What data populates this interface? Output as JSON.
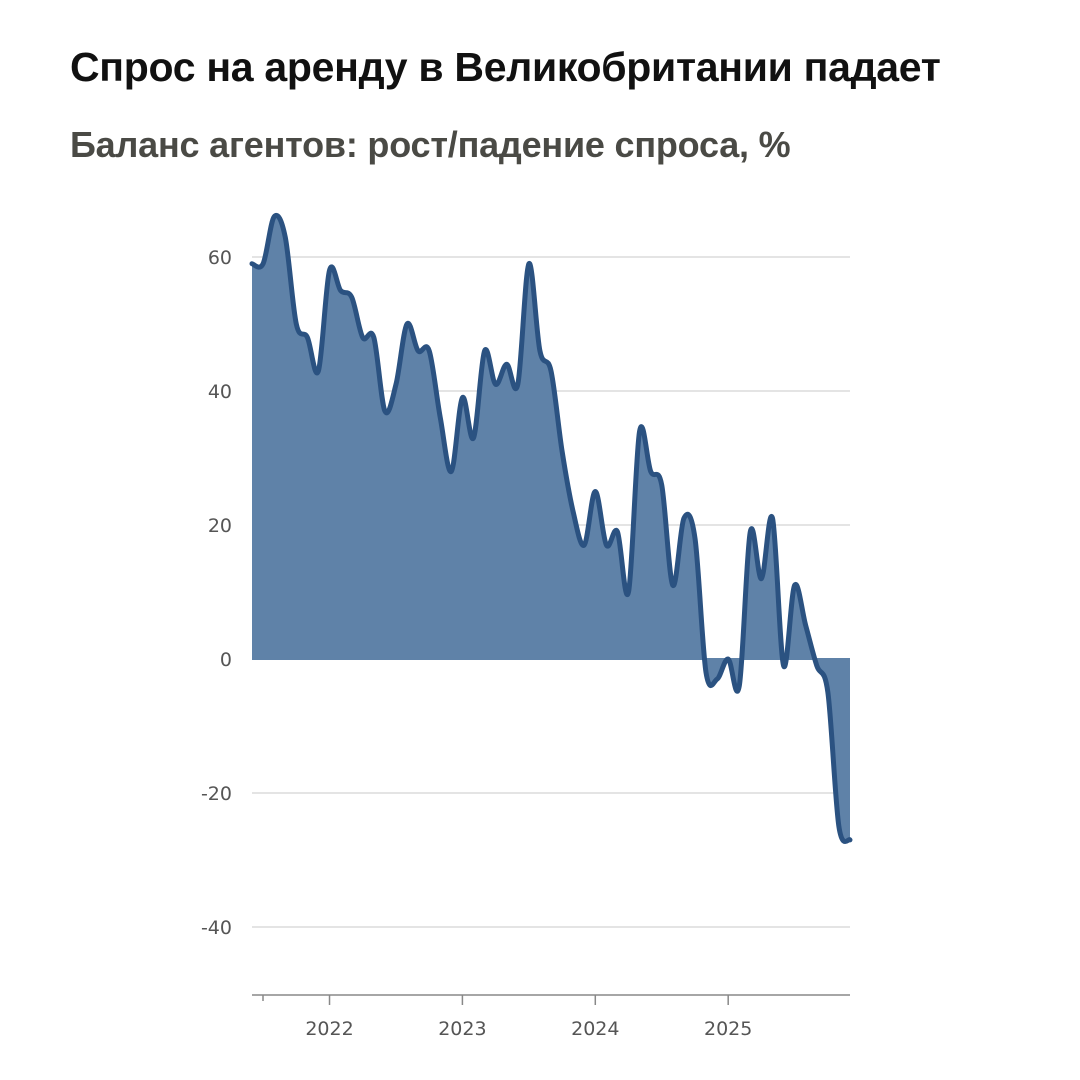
{
  "header": {
    "title": "Спрос на аренду в Великобритании падает",
    "subtitle": "Баланс агентов: рост/падение спроса, %"
  },
  "colors": {
    "area_fill": "#5f82a8",
    "line": "#2b5281",
    "grid": "#dcdcdc",
    "axis": "#888888"
  },
  "chart_data": {
    "type": "area",
    "title": "Спрос на аренду в Великобритании падает",
    "subtitle": "Баланс агентов: рост/падение спроса, %",
    "xlabel": "",
    "ylabel": "",
    "ylim": [
      -50,
      66
    ],
    "xlim": [
      "2021-06",
      "2025-12"
    ],
    "grid": "horizontal",
    "legend": "none",
    "y_ticks": [
      60,
      40,
      20,
      0,
      -20,
      -40
    ],
    "x_ticks": [
      "2022",
      "2023",
      "2024",
      "2025"
    ],
    "x": [
      "2021-06",
      "2021-07",
      "2021-08",
      "2021-09",
      "2021-10",
      "2021-11",
      "2021-12",
      "2022-01",
      "2022-02",
      "2022-03",
      "2022-04",
      "2022-05",
      "2022-06",
      "2022-07",
      "2022-08",
      "2022-09",
      "2022-10",
      "2022-11",
      "2022-12",
      "2023-01",
      "2023-02",
      "2023-03",
      "2023-04",
      "2023-05",
      "2023-06",
      "2023-07",
      "2023-08",
      "2023-09",
      "2023-10",
      "2023-11",
      "2023-12",
      "2024-01",
      "2024-02",
      "2024-03",
      "2024-04",
      "2024-05",
      "2024-06",
      "2024-07",
      "2024-08",
      "2024-09",
      "2024-10",
      "2024-11",
      "2024-12",
      "2025-01",
      "2025-02",
      "2025-03",
      "2025-04",
      "2025-05",
      "2025-06",
      "2025-07",
      "2025-08",
      "2025-09",
      "2025-10",
      "2025-11",
      "2025-12"
    ],
    "series": [
      {
        "values": [
          59,
          59,
          66,
          63,
          50,
          48,
          43,
          58,
          55,
          54,
          48,
          48,
          37,
          41,
          50,
          46,
          46,
          36,
          28,
          39,
          33,
          46,
          41,
          44,
          41,
          59,
          46,
          43,
          31,
          22,
          17,
          25,
          17,
          19,
          10,
          34,
          28,
          26,
          11,
          21,
          18,
          -2,
          -3,
          0,
          -4,
          19,
          12,
          21,
          -1,
          11,
          5,
          -1,
          -5,
          -25,
          -27
        ]
      }
    ]
  }
}
